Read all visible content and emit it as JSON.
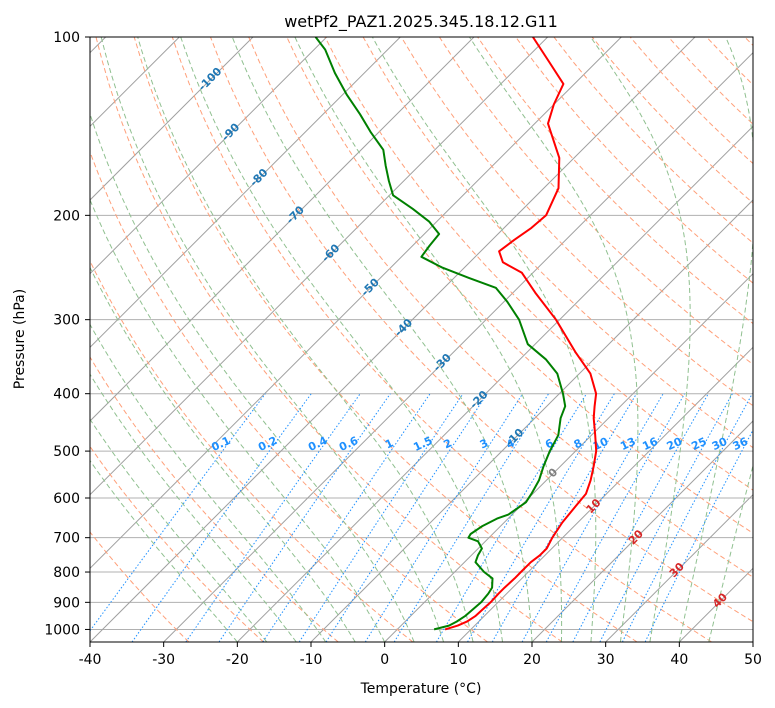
{
  "chart_data": {
    "type": "line",
    "title": "wetPf2_PAZ1.2025.345.18.12.G11",
    "xlabel": "Temperature (°C)",
    "ylabel": "Pressure (hPa)",
    "xlim": [
      -40,
      50
    ],
    "ylim": [
      1050,
      100
    ],
    "y_scale": "log",
    "skew": "isotherms skewed 45°",
    "x_ticks": [
      "-40",
      "-30",
      "-20",
      "-10",
      "0",
      "10",
      "20",
      "30",
      "40",
      "50"
    ],
    "y_ticks": [
      "100",
      "200",
      "300",
      "400",
      "500",
      "600",
      "700",
      "800",
      "900",
      "1000"
    ],
    "grid": true,
    "series": [
      {
        "name": "temperature",
        "color": "#ff0000",
        "points": [
          [
            1000,
            6.5
          ],
          [
            985,
            7.7
          ],
          [
            970,
            8.4
          ],
          [
            950,
            8.8
          ],
          [
            920,
            8.9
          ],
          [
            900,
            9.0
          ],
          [
            870,
            8.9
          ],
          [
            850,
            8.9
          ],
          [
            820,
            9.0
          ],
          [
            800,
            9.0
          ],
          [
            770,
            9.0
          ],
          [
            750,
            9.3
          ],
          [
            730,
            9.3
          ],
          [
            700,
            8.6
          ],
          [
            660,
            7.9
          ],
          [
            620,
            7.5
          ],
          [
            590,
            7.2
          ],
          [
            560,
            6.0
          ],
          [
            530,
            4.5
          ],
          [
            500,
            2.8
          ],
          [
            470,
            0.5
          ],
          [
            440,
            -2.0
          ],
          [
            420,
            -3.5
          ],
          [
            400,
            -5.0
          ],
          [
            370,
            -8.5
          ],
          [
            340,
            -13.5
          ],
          [
            300,
            -20.5
          ],
          [
            270,
            -27.0
          ],
          [
            250,
            -31.5
          ],
          [
            240,
            -35.5
          ],
          [
            230,
            -37.5
          ],
          [
            220,
            -37.0
          ],
          [
            210,
            -36.3
          ],
          [
            200,
            -36.0
          ],
          [
            180,
            -38.0
          ],
          [
            160,
            -42.0
          ],
          [
            140,
            -48.2
          ],
          [
            130,
            -50.0
          ],
          [
            120,
            -51.5
          ],
          [
            110,
            -56.5
          ],
          [
            100,
            -62.0
          ]
        ]
      },
      {
        "name": "dewpoint",
        "color": "#008000",
        "points": [
          [
            1000,
            5.0
          ],
          [
            985,
            6.5
          ],
          [
            970,
            7.0
          ],
          [
            950,
            7.4
          ],
          [
            900,
            7.7
          ],
          [
            870,
            7.5
          ],
          [
            850,
            7.2
          ],
          [
            820,
            6.0
          ],
          [
            800,
            4.0
          ],
          [
            770,
            1.5
          ],
          [
            750,
            0.9
          ],
          [
            730,
            0.5
          ],
          [
            710,
            -1.0
          ],
          [
            700,
            -2.8
          ],
          [
            690,
            -3.0
          ],
          [
            670,
            -2.5
          ],
          [
            650,
            -1.5
          ],
          [
            640,
            -0.5
          ],
          [
            610,
            0.2
          ],
          [
            590,
            -0.2
          ],
          [
            560,
            -1.0
          ],
          [
            530,
            -2.3
          ],
          [
            500,
            -3.5
          ],
          [
            470,
            -4.5
          ],
          [
            440,
            -6.5
          ],
          [
            420,
            -7.5
          ],
          [
            400,
            -9.5
          ],
          [
            370,
            -13.0
          ],
          [
            350,
            -16.5
          ],
          [
            330,
            -21.0
          ],
          [
            300,
            -25.5
          ],
          [
            280,
            -29.5
          ],
          [
            265,
            -33.0
          ],
          [
            255,
            -38.0
          ],
          [
            245,
            -43.0
          ],
          [
            235,
            -47.3
          ],
          [
            225,
            -47.7
          ],
          [
            215,
            -48.0
          ],
          [
            205,
            -51.0
          ],
          [
            195,
            -55.0
          ],
          [
            185,
            -59.5
          ],
          [
            175,
            -62.0
          ],
          [
            165,
            -64.5
          ],
          [
            155,
            -67.0
          ],
          [
            145,
            -71.0
          ],
          [
            135,
            -75.0
          ],
          [
            125,
            -79.5
          ],
          [
            115,
            -84.0
          ],
          [
            105,
            -88.5
          ],
          [
            100,
            -91.5
          ]
        ]
      }
    ],
    "isotherm_labels": [
      "-100",
      "-90",
      "-80",
      "-70",
      "-60",
      "-50",
      "-40",
      "-30",
      "-20",
      "-10",
      "0",
      "10",
      "20",
      "30",
      "40"
    ],
    "mixing_ratio_labels": [
      "0.1",
      "0.2",
      "0.4",
      "0.6",
      "1",
      "1.5",
      "2",
      "3",
      "4",
      "6",
      "8",
      "10",
      "13",
      "16",
      "20",
      "25",
      "30",
      "36"
    ],
    "mixing_ratio_label_pressure": 500,
    "colors": {
      "grid": "#b0b0b0",
      "isotherm": "#a0a0a0",
      "dry_adiabat": "#ffa07a",
      "moist_adiabat": "#90c090",
      "mixing_ratio": "#1e90ff",
      "label_cold": "#1f77b4",
      "label_zero": "#808080",
      "label_warm": "#d62728",
      "label_mixing": "#1e90ff"
    }
  }
}
